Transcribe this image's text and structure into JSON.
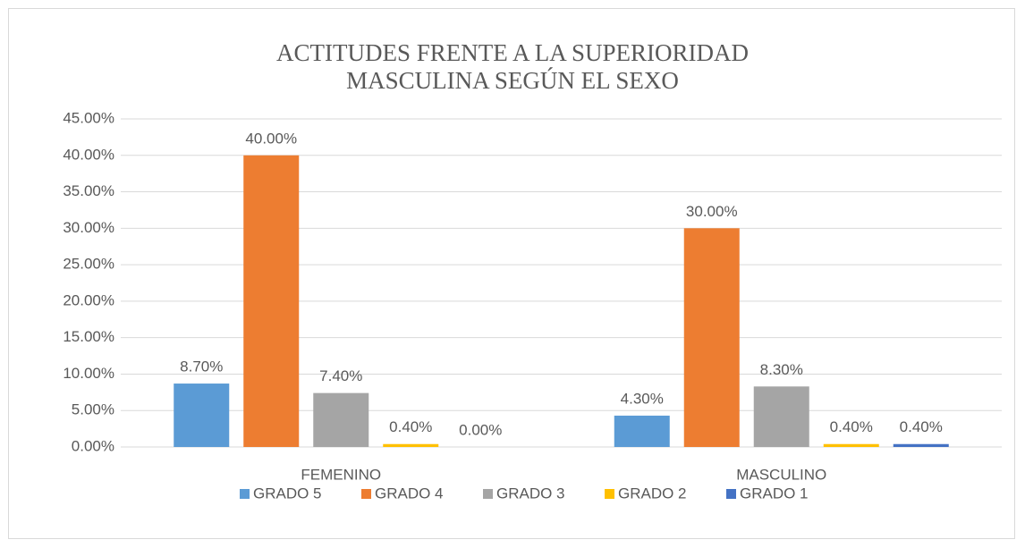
{
  "chart_data": {
    "type": "bar",
    "title": "ACTITUDES FRENTE A LA SUPERIORIDAD MASCULINA SEGÚN EL SEXO",
    "categories": [
      "FEMENINO",
      "MASCULINO"
    ],
    "series": [
      {
        "name": "GRADO 5",
        "color": "#5b9bd5",
        "values": [
          8.7,
          4.3
        ],
        "value_labels": [
          "8.70%",
          "4.30%"
        ]
      },
      {
        "name": "GRADO 4",
        "color": "#ed7d31",
        "values": [
          40,
          30
        ],
        "value_labels": [
          "40.00%",
          "30.00%"
        ]
      },
      {
        "name": "GRADO 3",
        "color": "#a5a5a5",
        "values": [
          7.4,
          8.3
        ],
        "value_labels": [
          "7.40%",
          "8.30%"
        ]
      },
      {
        "name": "GRADO 2",
        "color": "#ffc000",
        "values": [
          0.4,
          0.4
        ],
        "value_labels": [
          "0.40%",
          "0.40%"
        ]
      },
      {
        "name": "GRADO 1",
        "color": "#4472c4",
        "values": [
          0,
          0.4
        ],
        "value_labels": [
          "0.00%",
          "0.40%"
        ]
      }
    ],
    "ylim": [
      0,
      45
    ],
    "yticks": [
      {
        "value": 0,
        "label": "0.00%"
      },
      {
        "value": 5,
        "label": "5.00%"
      },
      {
        "value": 10,
        "label": "10.00%"
      },
      {
        "value": 15,
        "label": "15.00%"
      },
      {
        "value": 20,
        "label": "20.00%"
      },
      {
        "value": 25,
        "label": "25.00%"
      },
      {
        "value": 30,
        "label": "30.00%"
      },
      {
        "value": 35,
        "label": "35.00%"
      },
      {
        "value": 40,
        "label": "40.00%"
      },
      {
        "value": 45,
        "label": "45.00%"
      }
    ],
    "grid": true,
    "legend": "bottom"
  }
}
